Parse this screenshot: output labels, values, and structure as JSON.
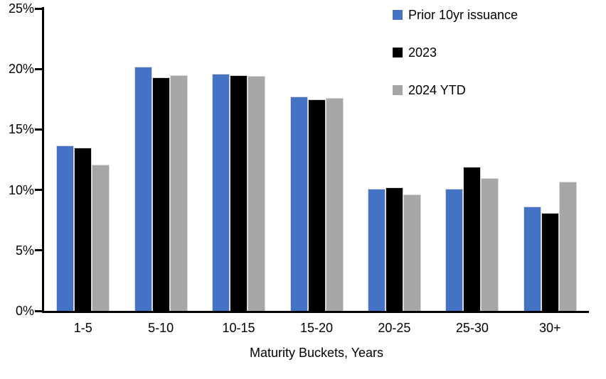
{
  "chart_data": {
    "type": "bar",
    "title": "",
    "xlabel": "Maturity Buckets, Years",
    "ylabel": "",
    "ylim": [
      0,
      25
    ],
    "ytick_step": 5,
    "ytick_labels": [
      "0%",
      "5%",
      "10%",
      "15%",
      "20%",
      "25%"
    ],
    "grid": false,
    "legend_position": "top-right",
    "categories": [
      "1-5",
      "5-10",
      "10-15",
      "15-20",
      "20-25",
      "25-30",
      "30+"
    ],
    "series": [
      {
        "name": "Prior 10yr issuance",
        "color": "#4472C4",
        "values": [
          13.7,
          20.2,
          19.6,
          17.7,
          10.1,
          10.1,
          8.6
        ]
      },
      {
        "name": "2023",
        "color": "#000000",
        "values": [
          13.5,
          19.3,
          19.5,
          17.5,
          10.2,
          11.9,
          8.1
        ]
      },
      {
        "name": "2024 YTD",
        "color": "#A6A6A6",
        "values": [
          12.1,
          19.5,
          19.4,
          17.6,
          9.6,
          11.0,
          10.7
        ]
      }
    ],
    "colors": {
      "axis": "#000000",
      "bar_outline": "#d9d9d9",
      "background": "#ffffff"
    }
  }
}
